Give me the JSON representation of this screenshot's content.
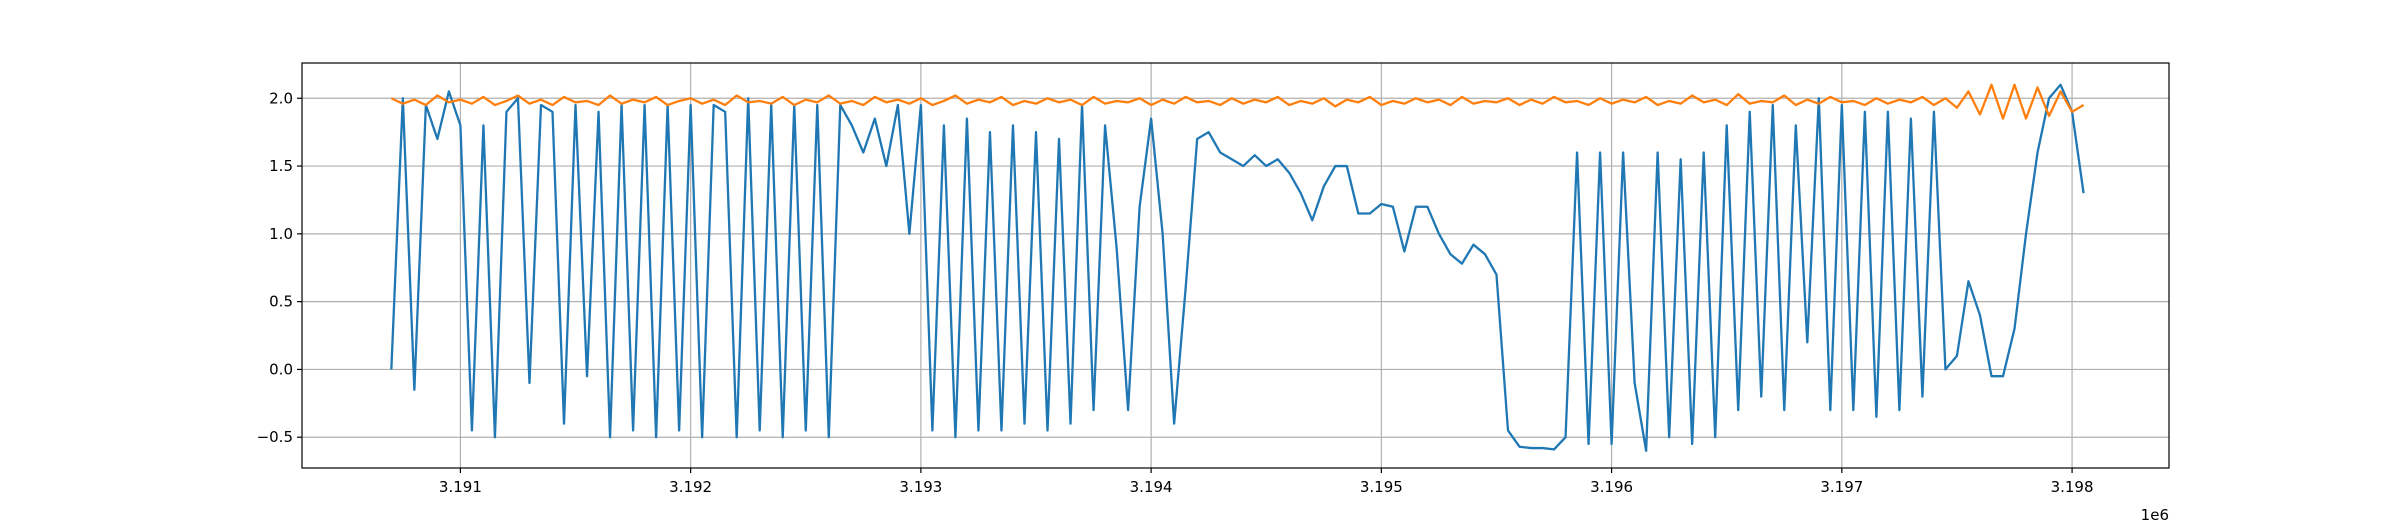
{
  "chart_data": {
    "type": "line",
    "x": [
      3190700,
      3190750,
      3190800,
      3190850,
      3190900,
      3190950,
      3191000,
      3191050,
      3191100,
      3191150,
      3191200,
      3191250,
      3191300,
      3191350,
      3191400,
      3191450,
      3191500,
      3191550,
      3191600,
      3191650,
      3191700,
      3191750,
      3191800,
      3191850,
      3191900,
      3191950,
      3192000,
      3192050,
      3192100,
      3192150,
      3192200,
      3192250,
      3192300,
      3192350,
      3192400,
      3192450,
      3192500,
      3192550,
      3192600,
      3192650,
      3192700,
      3192750,
      3192800,
      3192850,
      3192900,
      3192950,
      3193000,
      3193050,
      3193100,
      3193150,
      3193200,
      3193250,
      3193300,
      3193350,
      3193400,
      3193450,
      3193500,
      3193550,
      3193600,
      3193650,
      3193700,
      3193750,
      3193800,
      3193850,
      3193900,
      3193950,
      3194000,
      3194050,
      3194100,
      3194150,
      3194200,
      3194250,
      3194300,
      3194350,
      3194400,
      3194450,
      3194500,
      3194550,
      3194600,
      3194650,
      3194700,
      3194750,
      3194800,
      3194850,
      3194900,
      3194950,
      3195000,
      3195050,
      3195100,
      3195150,
      3195200,
      3195250,
      3195300,
      3195350,
      3195400,
      3195450,
      3195500,
      3195550,
      3195600,
      3195650,
      3195700,
      3195750,
      3195800,
      3195850,
      3195900,
      3195950,
      3196000,
      3196050,
      3196100,
      3196150,
      3196200,
      3196250,
      3196300,
      3196350,
      3196400,
      3196450,
      3196500,
      3196550,
      3196600,
      3196650,
      3196700,
      3196750,
      3196800,
      3196850,
      3196900,
      3196950,
      3197000,
      3197050,
      3197100,
      3197150,
      3197200,
      3197250,
      3197300,
      3197350,
      3197400,
      3197450,
      3197500,
      3197550,
      3197600,
      3197650,
      3197700,
      3197750,
      3197800,
      3197850,
      3197900,
      3197950,
      3198000,
      3198050
    ],
    "series": [
      {
        "color": "#1f77b4",
        "values": [
          0.0,
          2.0,
          -0.15,
          1.95,
          1.7,
          2.05,
          1.8,
          -0.45,
          1.8,
          -0.5,
          1.9,
          2.0,
          -0.1,
          1.95,
          1.9,
          -0.4,
          1.95,
          -0.05,
          1.9,
          -0.5,
          1.95,
          -0.45,
          1.95,
          -0.5,
          1.95,
          -0.45,
          1.95,
          -0.5,
          1.95,
          1.9,
          -0.5,
          2.0,
          -0.45,
          1.95,
          -0.5,
          1.95,
          -0.45,
          1.95,
          -0.5,
          1.95,
          1.8,
          1.6,
          1.85,
          1.5,
          1.95,
          1.0,
          1.95,
          -0.45,
          1.8,
          -0.5,
          1.85,
          -0.45,
          1.75,
          -0.45,
          1.8,
          -0.4,
          1.75,
          -0.45,
          1.7,
          -0.4,
          1.95,
          -0.3,
          1.8,
          0.9,
          -0.3,
          1.2,
          1.85,
          1.0,
          -0.4,
          0.6,
          1.7,
          1.75,
          1.6,
          1.55,
          1.5,
          1.58,
          1.5,
          1.55,
          1.45,
          1.3,
          1.1,
          1.35,
          1.5,
          1.5,
          1.15,
          1.15,
          1.22,
          1.2,
          0.87,
          1.2,
          1.2,
          1.0,
          0.85,
          0.78,
          0.92,
          0.85,
          0.7,
          -0.45,
          -0.57,
          -0.58,
          -0.58,
          -0.59,
          -0.5,
          1.6,
          -0.55,
          1.6,
          -0.55,
          1.6,
          -0.1,
          -0.6,
          1.6,
          -0.5,
          1.55,
          -0.55,
          1.6,
          -0.5,
          1.8,
          -0.3,
          1.9,
          -0.2,
          1.95,
          -0.3,
          1.8,
          0.2,
          2.0,
          -0.3,
          1.95,
          -0.3,
          1.9,
          -0.35,
          1.9,
          -0.3,
          1.85,
          -0.2,
          1.9,
          0.0,
          0.1,
          0.65,
          0.4,
          -0.05,
          -0.05,
          0.3,
          1.0,
          1.6,
          2.0,
          2.1,
          1.9,
          1.3
        ]
      },
      {
        "color": "#ff7f0e",
        "values": [
          2.0,
          1.96,
          1.99,
          1.95,
          2.02,
          1.97,
          1.99,
          1.96,
          2.01,
          1.95,
          1.98,
          2.02,
          1.96,
          1.99,
          1.95,
          2.01,
          1.97,
          1.98,
          1.95,
          2.02,
          1.96,
          1.99,
          1.97,
          2.01,
          1.95,
          1.98,
          2.0,
          1.96,
          1.99,
          1.95,
          2.02,
          1.97,
          1.98,
          1.96,
          2.01,
          1.95,
          1.99,
          1.97,
          2.02,
          1.96,
          1.98,
          1.95,
          2.01,
          1.97,
          1.99,
          1.96,
          2.0,
          1.95,
          1.98,
          2.02,
          1.96,
          1.99,
          1.97,
          2.01,
          1.95,
          1.98,
          1.96,
          2.0,
          1.97,
          1.99,
          1.95,
          2.01,
          1.96,
          1.98,
          1.97,
          2.0,
          1.95,
          1.99,
          1.96,
          2.01,
          1.97,
          1.98,
          1.95,
          2.0,
          1.96,
          1.99,
          1.97,
          2.01,
          1.95,
          1.98,
          1.96,
          2.0,
          1.94,
          1.99,
          1.97,
          2.01,
          1.95,
          1.98,
          1.96,
          2.0,
          1.97,
          1.99,
          1.95,
          2.01,
          1.96,
          1.98,
          1.97,
          2.0,
          1.95,
          1.99,
          1.96,
          2.01,
          1.97,
          1.98,
          1.95,
          2.0,
          1.96,
          1.99,
          1.97,
          2.01,
          1.95,
          1.98,
          1.96,
          2.02,
          1.97,
          1.99,
          1.95,
          2.03,
          1.96,
          1.98,
          1.97,
          2.02,
          1.95,
          1.99,
          1.96,
          2.01,
          1.97,
          1.98,
          1.95,
          2.0,
          1.96,
          1.99,
          1.97,
          2.01,
          1.95,
          2.0,
          1.93,
          2.05,
          1.88,
          2.1,
          1.85,
          2.1,
          1.85,
          2.08,
          1.87,
          2.05,
          1.9,
          1.95
        ]
      }
    ],
    "xlim": [
      3190312,
      3198421
    ],
    "xticks": [
      {
        "value": 3191000,
        "label": "3.191"
      },
      {
        "value": 3192000,
        "label": "3.192"
      },
      {
        "value": 3193000,
        "label": "3.193"
      },
      {
        "value": 3194000,
        "label": "3.194"
      },
      {
        "value": 3195000,
        "label": "3.195"
      },
      {
        "value": 3196000,
        "label": "3.196"
      },
      {
        "value": 3197000,
        "label": "3.197"
      },
      {
        "value": 3198000,
        "label": "3.198"
      }
    ],
    "x_offset_label": "1e6",
    "ylim": [
      -0.727,
      2.26
    ],
    "yticks": [
      {
        "value": -0.5,
        "label": "−0.5"
      },
      {
        "value": 0.0,
        "label": "0.0"
      },
      0.5,
      {
        "value": 1.0,
        "label": "1.0"
      },
      1.5,
      {
        "value": 2.0,
        "label": "2.0"
      }
    ],
    "grid": true
  }
}
